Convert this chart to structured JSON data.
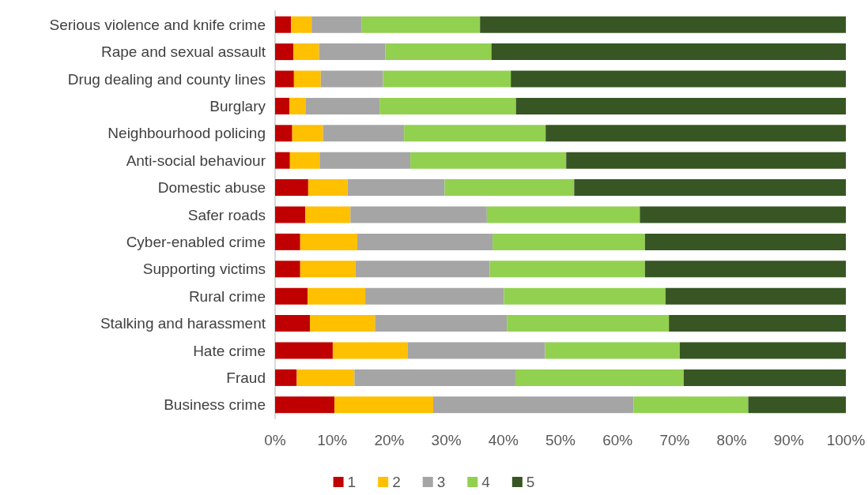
{
  "chart_data": {
    "type": "bar",
    "orientation": "horizontal",
    "stacked": true,
    "categories": [
      "Serious violence and knife crime",
      "Rape and sexual assault",
      "Drug dealing and county lines",
      "Burglary",
      "Neighbourhood policing",
      "Anti-social behaviour",
      "Domestic abuse",
      "Safer roads",
      "Cyber-enabled crime",
      "Supporting victims",
      "Rural crime",
      "Stalking and harassment",
      "Hate crime",
      "Fraud",
      "Business crime"
    ],
    "series": [
      {
        "name": "1",
        "color": "#c00000",
        "values": [
          2.8,
          3.2,
          3.3,
          2.5,
          3.0,
          2.6,
          5.8,
          5.3,
          4.4,
          4.4,
          5.7,
          6.1,
          10.1,
          3.8,
          10.4
        ]
      },
      {
        "name": "2",
        "color": "#ffc000",
        "values": [
          3.6,
          4.5,
          4.7,
          2.9,
          5.4,
          5.2,
          6.9,
          7.9,
          10.0,
          9.7,
          10.1,
          11.4,
          13.1,
          10.1,
          17.3
        ]
      },
      {
        "name": "3",
        "color": "#a5a5a5",
        "values": [
          8.8,
          11.6,
          10.9,
          12.9,
          14.2,
          15.9,
          17.0,
          23.9,
          23.7,
          23.5,
          24.3,
          23.1,
          24.1,
          28.2,
          35.1
        ]
      },
      {
        "name": "4",
        "color": "#92d050",
        "values": [
          20.7,
          18.6,
          22.4,
          23.9,
          24.8,
          27.3,
          22.7,
          26.8,
          26.7,
          27.2,
          28.3,
          28.4,
          23.6,
          29.5,
          20.1
        ]
      },
      {
        "name": "5",
        "color": "#375623",
        "values": [
          64.1,
          62.1,
          58.7,
          57.8,
          52.6,
          49.0,
          47.6,
          36.1,
          35.2,
          35.2,
          31.6,
          31.0,
          29.1,
          28.4,
          17.1
        ]
      }
    ],
    "xlim": [
      0,
      100
    ],
    "xticks": [
      {
        "value": 0,
        "label": "0%"
      },
      {
        "value": 10,
        "label": "10%"
      },
      {
        "value": 20,
        "label": "20%"
      },
      {
        "value": 30,
        "label": "30%"
      },
      {
        "value": 40,
        "label": "40%"
      },
      {
        "value": 50,
        "label": "50%"
      },
      {
        "value": 60,
        "label": "60%"
      },
      {
        "value": 70,
        "label": "70%"
      },
      {
        "value": 80,
        "label": "80%"
      },
      {
        "value": 90,
        "label": "90%"
      },
      {
        "value": 100,
        "label": "100%"
      }
    ],
    "grid": false,
    "legend": "bottom"
  }
}
